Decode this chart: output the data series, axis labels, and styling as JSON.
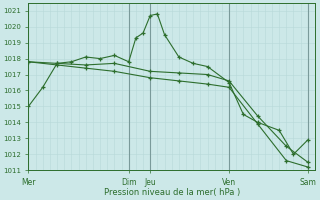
{
  "background_color": "#cce8e8",
  "grid_color_minor": "#b8d8d8",
  "grid_color_major": "#99b8b8",
  "line_color": "#2d6e2d",
  "marker_color": "#2d6e2d",
  "xlabel_text": "Pression niveau de la mer( hPa )",
  "ylim": [
    1011,
    1021.5
  ],
  "yticks": [
    1011,
    1012,
    1013,
    1014,
    1015,
    1016,
    1017,
    1018,
    1019,
    1020,
    1021
  ],
  "xlim": [
    0,
    40
  ],
  "xtick_major_pos": [
    0,
    14,
    17,
    28,
    39
  ],
  "xtick_major_labels": [
    "Mer",
    "Dim",
    "Jeu",
    "Ven",
    "Sam"
  ],
  "vline_pos": [
    0,
    14,
    17,
    28,
    39
  ],
  "series": [
    {
      "x": [
        0,
        2,
        4,
        6,
        8,
        10,
        12,
        14,
        15,
        16,
        17,
        18,
        19,
        21,
        23,
        25,
        28,
        30,
        32,
        35,
        37,
        39
      ],
      "y": [
        1015.0,
        1016.2,
        1017.7,
        1017.8,
        1018.1,
        1018.0,
        1018.2,
        1017.8,
        1019.3,
        1019.6,
        1020.7,
        1020.8,
        1019.5,
        1018.1,
        1017.7,
        1017.5,
        1016.5,
        1014.5,
        1014.0,
        1013.5,
        1012.0,
        1012.9
      ]
    },
    {
      "x": [
        0,
        4,
        8,
        12,
        17,
        21,
        25,
        28,
        32,
        36,
        39
      ],
      "y": [
        1017.8,
        1017.7,
        1017.6,
        1017.7,
        1017.2,
        1017.1,
        1017.0,
        1016.6,
        1014.4,
        1012.5,
        1011.5
      ]
    },
    {
      "x": [
        0,
        4,
        8,
        12,
        17,
        21,
        25,
        28,
        32,
        36,
        39
      ],
      "y": [
        1017.8,
        1017.6,
        1017.4,
        1017.2,
        1016.8,
        1016.6,
        1016.4,
        1016.2,
        1013.9,
        1011.6,
        1011.2
      ]
    }
  ]
}
